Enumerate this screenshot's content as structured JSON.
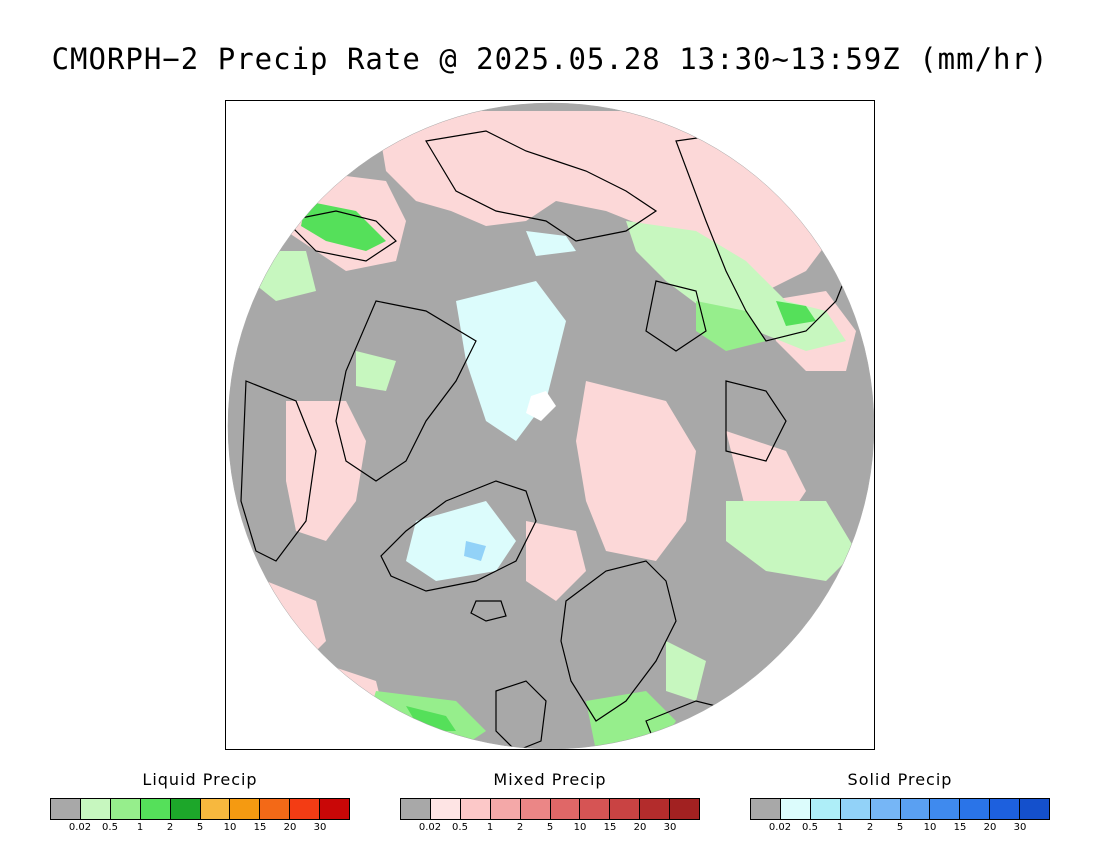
{
  "title": "CMORPH−2 Precip Rate @ 2025.05.28 13:30~13:59Z (mm/hr)",
  "map": {
    "projection": "polar-stereographic-north",
    "colors": {
      "no_precip": "#a8a8a8",
      "land_outline": "#000000",
      "pole_gap": "#ffffff"
    }
  },
  "legends": [
    {
      "title": "Liquid Precip",
      "colors": [
        "#a8a8a8",
        "#c7f7bf",
        "#96ee8c",
        "#55e05a",
        "#1da72a",
        "#f7b83e",
        "#f59a11",
        "#f36917",
        "#f33c14",
        "#c90707"
      ],
      "ticks": [
        "0.02",
        "0.5",
        "1",
        "2",
        "5",
        "10",
        "15",
        "20",
        "30"
      ]
    },
    {
      "title": "Mixed Precip",
      "colors": [
        "#a8a8a8",
        "#fee4e4",
        "#fcc8c8",
        "#f4a8a8",
        "#eb8686",
        "#e06767",
        "#d65454",
        "#c94343",
        "#b32c2c",
        "#a22121"
      ],
      "ticks": [
        "0.02",
        "0.5",
        "1",
        "2",
        "5",
        "10",
        "15",
        "20",
        "30"
      ]
    },
    {
      "title": "Solid Precip",
      "colors": [
        "#a8a8a8",
        "#dcfcfc",
        "#aeeef8",
        "#92d2f8",
        "#76b6f6",
        "#5aa0f2",
        "#3f8aee",
        "#2a74e8",
        "#1d60de",
        "#1450cc"
      ],
      "ticks": [
        "0.02",
        "0.5",
        "1",
        "2",
        "5",
        "10",
        "15",
        "20",
        "30"
      ]
    }
  ]
}
